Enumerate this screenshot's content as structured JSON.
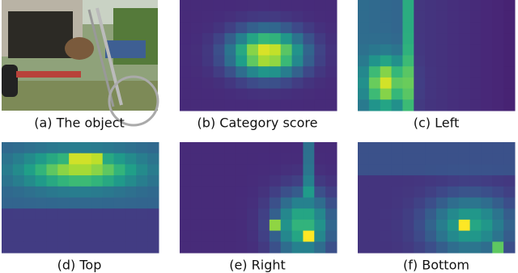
{
  "captions": [
    "(a) The object",
    "(b) Category score",
    "(c) Left",
    "(d) Top",
    "(e) Right",
    "(f) Bottom"
  ]
}
